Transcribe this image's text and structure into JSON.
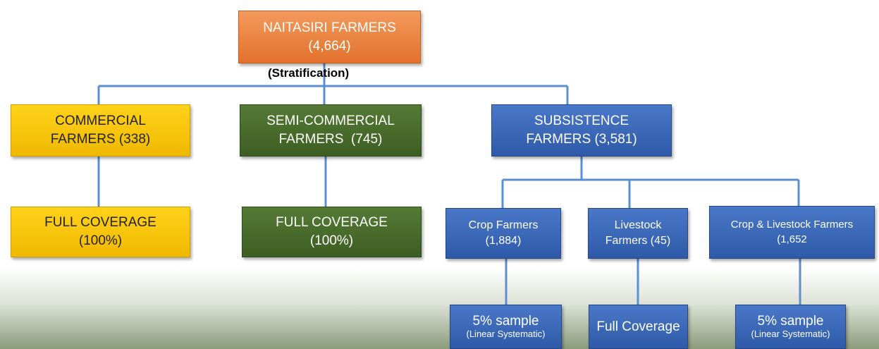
{
  "root": {
    "lines": [
      "NAITASIRI FARMERS",
      "(4,664)"
    ]
  },
  "annotation": "(Stratification)",
  "strata": [
    {
      "lines": [
        "COMMERCIAL",
        "FARMERS (338)"
      ]
    },
    {
      "lines": [
        "SEMI-COMMERCIAL",
        "FARMERS  (745)"
      ]
    },
    {
      "lines": [
        "SUBSISTENCE",
        "FARMERS (3,581)"
      ]
    }
  ],
  "coverage": [
    {
      "lines": [
        "FULL COVERAGE",
        "(100%)"
      ]
    },
    {
      "lines": [
        "FULL COVERAGE",
        "(100%)"
      ]
    }
  ],
  "subgroups": [
    {
      "lines": [
        "Crop Farmers",
        "(1,884)"
      ]
    },
    {
      "lines": [
        "Livestock",
        "Farmers (45)"
      ]
    },
    {
      "lines": [
        "Crop & Livestock Farmers",
        "(1,652"
      ]
    }
  ],
  "samples": [
    {
      "lines": [
        "5% sample",
        "(Linear Systematic)"
      ]
    },
    {
      "lines": [
        "Full Coverage"
      ]
    },
    {
      "lines": [
        "5% sample",
        "(Linear Systematic)"
      ]
    }
  ]
}
